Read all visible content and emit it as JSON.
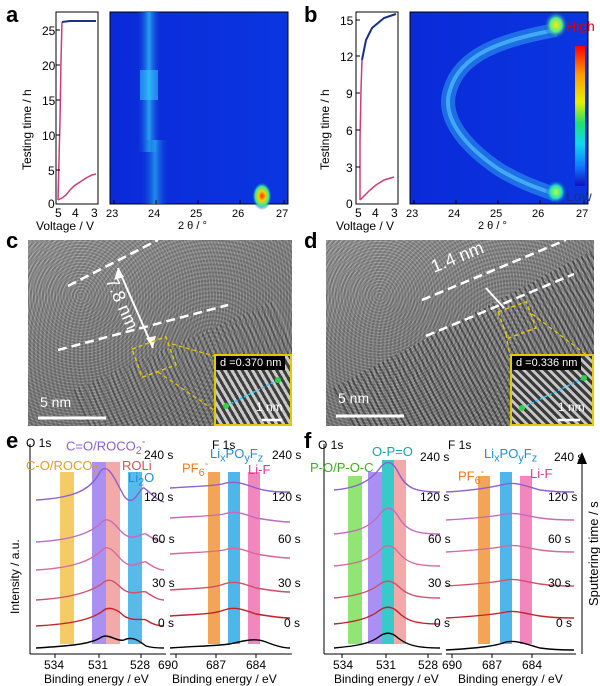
{
  "panels": {
    "a": "a",
    "b": "b",
    "c": "c",
    "d": "d",
    "e": "e",
    "f": "f"
  },
  "axes": {
    "testing_time": "Testing time / h",
    "voltage": "Voltage / V",
    "two_theta": "2 θ / °",
    "intensity": "Intensity / a.u.",
    "binding_energy": "Binding energy / eV",
    "sputtering_time": "Sputtering time / s"
  },
  "colorbar": {
    "high": "High",
    "low": "Low"
  },
  "ticks": {
    "a_time": [
      "25",
      "20",
      "15",
      "10",
      "5",
      "0"
    ],
    "b_time": [
      "15",
      "12",
      "9",
      "6",
      "3",
      "0"
    ],
    "voltage": [
      "5",
      "4",
      "3"
    ],
    "two_theta": [
      "23",
      "24",
      "25",
      "26",
      "27"
    ],
    "o1s": [
      "534",
      "531",
      "528"
    ],
    "f1s": [
      "690",
      "687",
      "684"
    ]
  },
  "tem": {
    "c_thickness": "7.8 nm",
    "d_thickness": "1.4 nm",
    "c_d_spacing": "d =0.370 nm",
    "d_d_spacing": "d =0.336 nm",
    "scale_main": "5 nm",
    "scale_inset": "1 nm"
  },
  "xps": {
    "o1s": "O 1s",
    "f1s": "F 1s",
    "times": [
      "240 s",
      "120 s",
      "60 s",
      "30 s",
      "0 s"
    ],
    "e_labels": {
      "co": "C-O/ROCO",
      "co_sub": "2",
      "co3": "C=O/ROCO",
      "co3_sub": "2",
      "co3_sup": "-",
      "roli": "ROLi",
      "li2o": "Li",
      "li2o_sub": "2",
      "li2o_tail": "O",
      "pf6": "PF",
      "pf6_sub": "6",
      "pf6_sup": "-",
      "lipoyfz": "Li",
      "lipoyfz_x": "x",
      "lipoyfz_po": "PO",
      "lipoyfz_y": "y",
      "lipoyfz_f": "F",
      "lipoyfz_z": "z",
      "lif": "Li-F"
    },
    "f_labels": {
      "pop": "P-O/P-O-C",
      "opo": "O-P=O"
    }
  },
  "colors": {
    "navy": "#1a2f8a",
    "pink_curve": "#d23a7a",
    "series": [
      "#8e5fd0",
      "#c46bbd",
      "#d56b9c",
      "#d0506d",
      "#c0232c",
      "#000000"
    ]
  }
}
